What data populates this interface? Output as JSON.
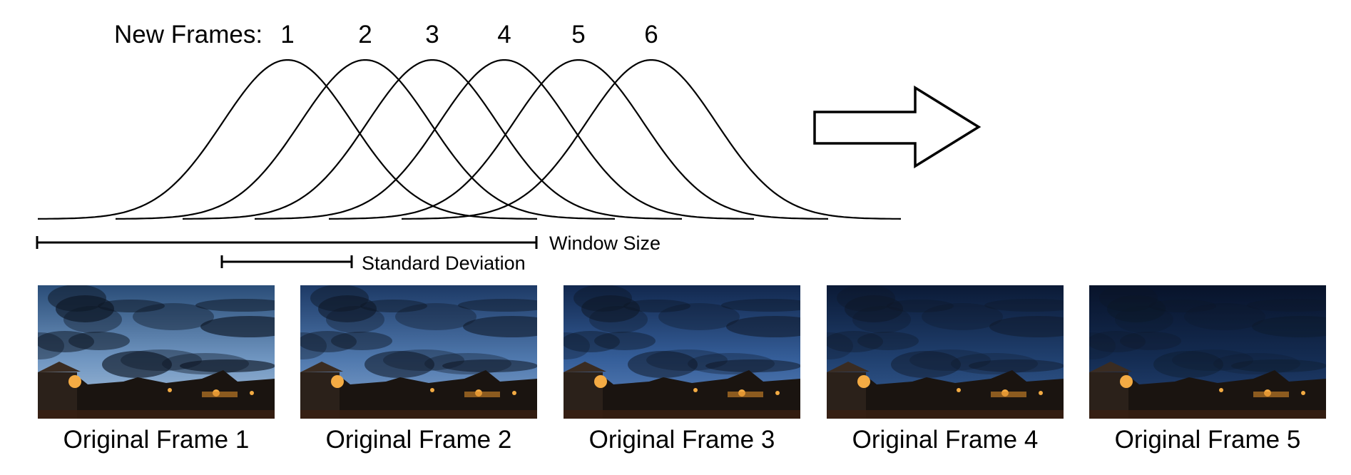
{
  "header": {
    "prefix": "New Frames:",
    "frame_numbers": [
      "1",
      "2",
      "3",
      "4",
      "5",
      "6"
    ]
  },
  "measures": {
    "window_size_label": "Window Size",
    "std_dev_label": "Standard Deviation"
  },
  "thumbnails": [
    {
      "label": "Original Frame 1",
      "sky": [
        "#2a4d78",
        "#6f95c0",
        "#a9c2dd"
      ],
      "cloud_opacity": 0.75
    },
    {
      "label": "Original Frame 2",
      "sky": [
        "#1d3a66",
        "#4f78ad",
        "#86a6cf"
      ],
      "cloud_opacity": 0.65
    },
    {
      "label": "Original Frame 3",
      "sky": [
        "#12284e",
        "#355e99",
        "#5f86bd"
      ],
      "cloud_opacity": 0.6
    },
    {
      "label": "Original Frame 4",
      "sky": [
        "#0b1a36",
        "#20406f",
        "#3a6198"
      ],
      "cloud_opacity": 0.5
    },
    {
      "label": "Original Frame 5",
      "sky": [
        "#08132a",
        "#142c52",
        "#27477a"
      ],
      "cloud_opacity": 0.4
    }
  ],
  "colors": {
    "stroke": "#000000",
    "ground": "#1a1410",
    "light": "#ffb347"
  },
  "icons": {
    "arrow": "right-arrow-icon"
  }
}
